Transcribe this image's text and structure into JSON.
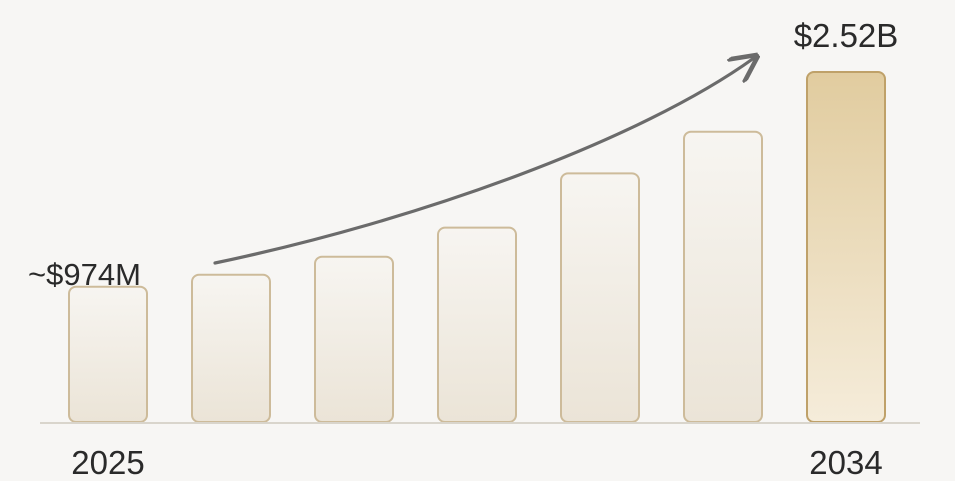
{
  "chart_data": {
    "type": "bar",
    "categories": [
      "2025",
      "",
      "",
      "",
      "",
      "",
      "2034"
    ],
    "values": [
      0.974,
      1.06,
      1.19,
      1.4,
      1.79,
      2.09,
      2.52
    ],
    "value_unit": "USD billions",
    "annotations": {
      "start": "~$974M",
      "end": "$2.52B"
    },
    "x_tick_labels": {
      "first": "2025",
      "last": "2034"
    },
    "trend_arrow": true,
    "grid": false,
    "legend": "none",
    "colors": {
      "bar_light_top": "#f7f5f1",
      "bar_light_bottom": "#ebe4d7",
      "bar_border": "#cdbb9a",
      "bar_highlight_top": "#e1cc9f",
      "bar_highlight_bottom": "#f5ecda",
      "bar_highlight_border": "#bfa169",
      "arrow": "#6b6b6b",
      "baseline": "#d9d5cc"
    }
  }
}
